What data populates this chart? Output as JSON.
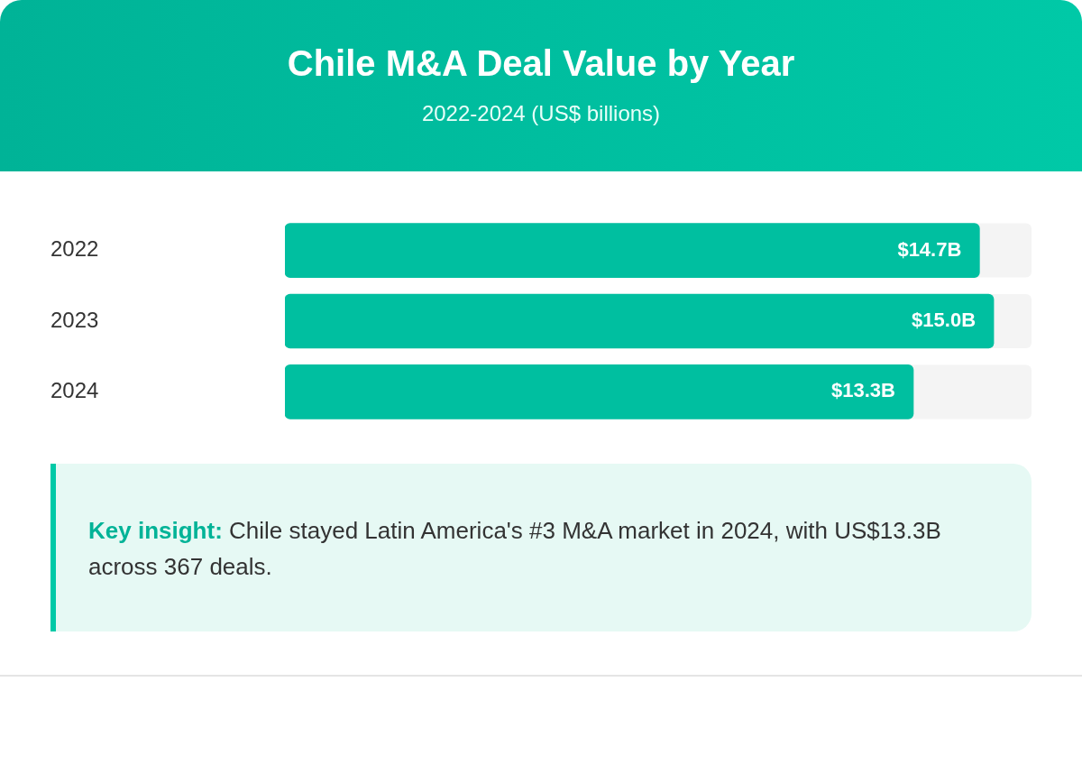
{
  "chart_data": {
    "type": "bar",
    "orientation": "horizontal",
    "title": "Chile M&A Deal Value by Year",
    "subtitle": "2022-2024 (US$ billions)",
    "categories": [
      "2022",
      "2023",
      "2024"
    ],
    "values": [
      14.7,
      15.0,
      13.3
    ],
    "value_labels": [
      "$14.7B",
      "$15.0B",
      "$13.3B"
    ],
    "color": "#00bfa0",
    "xlim": [
      0,
      15.8
    ],
    "legend": false,
    "annotations": [
      "Key insight: Chile stayed Latin America's #3 M&A market in 2024, with US$13.3B across 367 deals."
    ]
  }
}
